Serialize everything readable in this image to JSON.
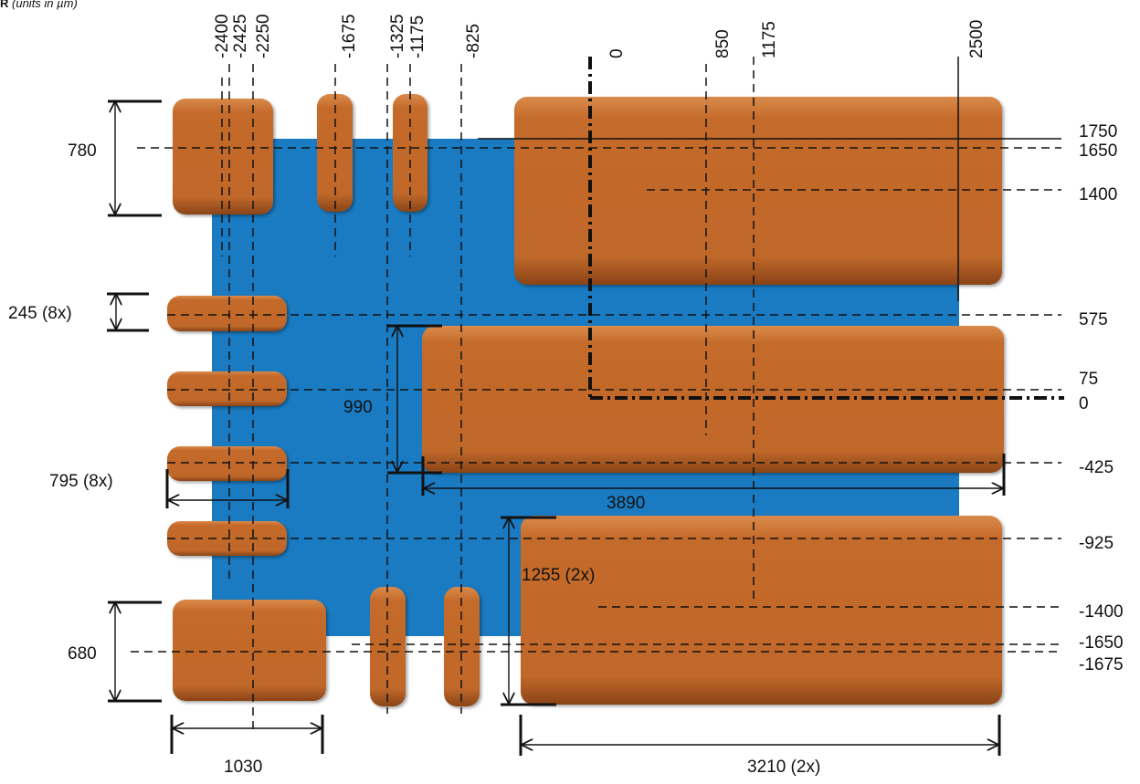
{
  "note": {
    "marker": "R",
    "units": "(units in µm)"
  },
  "colors": {
    "copper": "#c46a2b",
    "substrate": "#1a7bc2",
    "line": "#111111"
  },
  "top_labels": [
    "-2400",
    "-2425",
    "-2250",
    "-1675",
    "-1325",
    "-1175",
    "-825",
    "0",
    "850",
    "1175",
    "2500"
  ],
  "right_labels": [
    "1750",
    "1650",
    "1400",
    "575",
    "75",
    "0",
    "-425",
    "-925",
    "-1400",
    "-1650",
    "-1675"
  ],
  "dimensions": {
    "pad_height_top_left": "780",
    "small_pad_height": "245  (8x)",
    "small_pad_width": "795  (8x)",
    "pad_height_bottom_left": "680",
    "pad_width_bottom_left": "1030",
    "middle_pad_height": "990",
    "middle_pad_width": "3890",
    "bottom_right_pad_height": "1255  (2x)",
    "bottom_right_pad_width": "3210  (2x)"
  }
}
